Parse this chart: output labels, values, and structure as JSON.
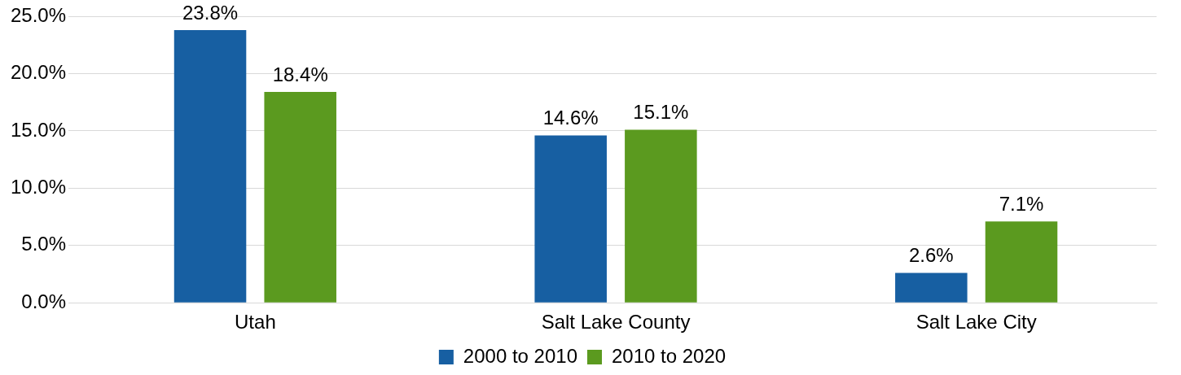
{
  "chart_data": {
    "type": "bar",
    "categories": [
      "Utah",
      "Salt Lake County",
      "Salt Lake City"
    ],
    "series": [
      {
        "name": "2000 to 2010",
        "color": "#175fa2",
        "values": [
          23.8,
          14.6,
          2.6
        ]
      },
      {
        "name": "2010 to 2020",
        "color": "#5b9a1f",
        "values": [
          18.4,
          15.1,
          7.1
        ]
      }
    ],
    "ylim": [
      0,
      25
    ],
    "yticks": [
      {
        "value": 0,
        "label": "0.0%"
      },
      {
        "value": 5,
        "label": "5.0%"
      },
      {
        "value": 10,
        "label": "10.0%"
      },
      {
        "value": 15,
        "label": "15.0%"
      },
      {
        "value": 20,
        "label": "20.0%"
      },
      {
        "value": 25,
        "label": "25.0%"
      }
    ],
    "value_labels": [
      [
        "23.8%",
        "14.6%",
        "2.6%"
      ],
      [
        "18.4%",
        "15.1%",
        "7.1%"
      ]
    ],
    "grid": "y",
    "legend": "bottom"
  }
}
